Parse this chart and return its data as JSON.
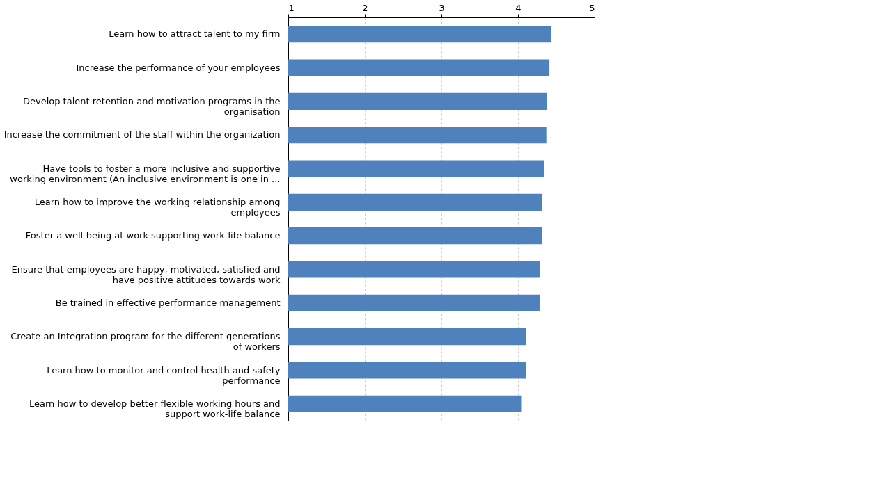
{
  "chart_data": {
    "type": "bar",
    "orientation": "horizontal",
    "categories": [
      "Learn how to attract talent to my firm",
      "Increase the performance of your employees",
      "Develop talent retention and motivation programs in the organisation",
      "Increase the commitment of the staff within the organization",
      "Have tools to foster a more inclusive and supportive working environment (An inclusive environment is one in ...",
      "Learn how to improve the working relationship among employees",
      "Foster a well-being at work supporting work-life balance",
      "Ensure that employees are happy, motivated, satisfied and have positive attitudes towards work",
      "Be trained in effective performance management",
      "Create an Integration program for the different generations of workers",
      "Learn how to monitor and control health and safety performance",
      "Learn how to develop better flexible working hours and support work-life balance"
    ],
    "values": [
      4.43,
      4.41,
      4.38,
      4.37,
      4.34,
      4.31,
      4.31,
      4.29,
      4.29,
      4.1,
      4.1,
      4.05
    ],
    "color": "#4f81bd",
    "xlim": [
      1,
      5
    ],
    "xticks": [
      1,
      2,
      3,
      4,
      5
    ],
    "grid": "x"
  }
}
